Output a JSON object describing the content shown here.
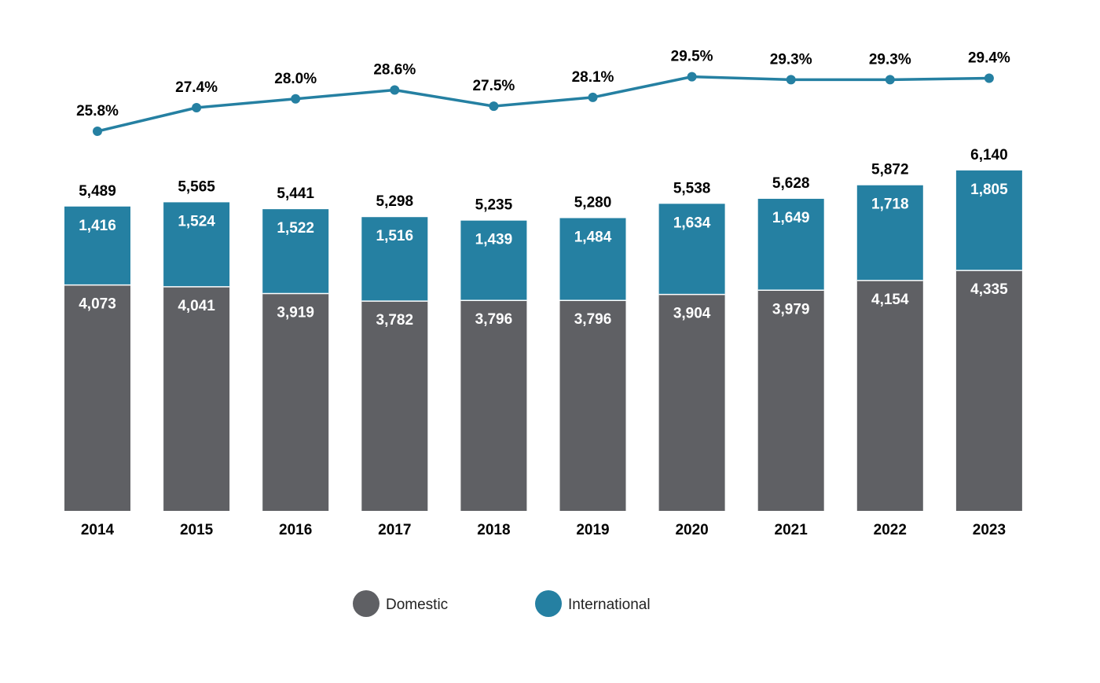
{
  "chart_data": {
    "type": "bar",
    "stacked": true,
    "categories": [
      "2014",
      "2015",
      "2016",
      "2017",
      "2018",
      "2019",
      "2020",
      "2021",
      "2022",
      "2023"
    ],
    "series": [
      {
        "name": "Domestic",
        "values": [
          4073,
          4041,
          3919,
          3782,
          3796,
          3796,
          3904,
          3979,
          4154,
          4335
        ],
        "labels": [
          "4,073",
          "4,041",
          "3,919",
          "3,782",
          "3,796",
          "3,796",
          "3,904",
          "3,979",
          "4,154",
          "4,335"
        ]
      },
      {
        "name": "International",
        "values": [
          1416,
          1524,
          1522,
          1516,
          1439,
          1484,
          1634,
          1649,
          1718,
          1805
        ],
        "labels": [
          "1,416",
          "1,524",
          "1,522",
          "1,516",
          "1,439",
          "1,484",
          "1,634",
          "1,649",
          "1,718",
          "1,805"
        ]
      }
    ],
    "totals": [
      5489,
      5565,
      5441,
      5298,
      5235,
      5280,
      5538,
      5628,
      5872,
      6140
    ],
    "total_labels": [
      "5,489",
      "5,565",
      "5,441",
      "5,298",
      "5,235",
      "5,280",
      "5,538",
      "5,628",
      "5,872",
      "6,140"
    ],
    "line": {
      "type": "line",
      "values": [
        25.8,
        27.4,
        28.0,
        28.6,
        27.5,
        28.1,
        29.5,
        29.3,
        29.3,
        29.4
      ],
      "labels": [
        "25.8%",
        "27.4%",
        "28.0%",
        "28.6%",
        "27.5%",
        "28.1%",
        "29.5%",
        "29.3%",
        "29.3%",
        "29.4%"
      ]
    },
    "legend": {
      "placement": "bottom-center",
      "items": [
        "Domestic",
        "International"
      ]
    },
    "grid": false,
    "colors": {
      "Domestic": "#5f6064",
      "International": "#2580a2",
      "line": "#2580a2"
    }
  }
}
